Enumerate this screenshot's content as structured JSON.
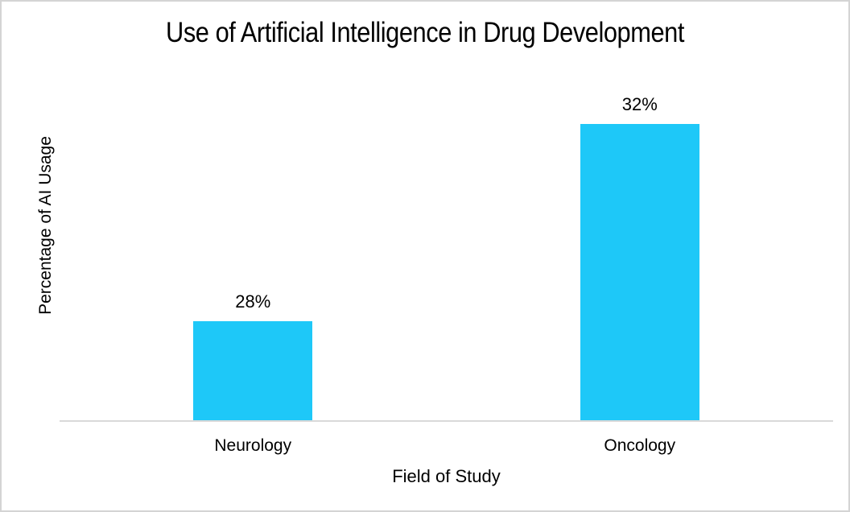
{
  "chart_data": {
    "type": "bar",
    "title": "Use of Artificial Intelligence in Drug Development",
    "categories": [
      "Neurology",
      "Oncology"
    ],
    "values": [
      28,
      32
    ],
    "data_labels": [
      "28%",
      "32%"
    ],
    "xlabel": "Field of Study",
    "ylabel": "Percentage of AI Usage",
    "ylim": [
      26,
      33
    ],
    "y_ticks_visible": false,
    "grid": false,
    "legend_position": "none",
    "bar_color": "#1ec8f8",
    "axis_line_color": "#d9d9d9",
    "frame_color": "#d4d4d4",
    "background_color": "#ffffff",
    "text_color": "#000000"
  }
}
